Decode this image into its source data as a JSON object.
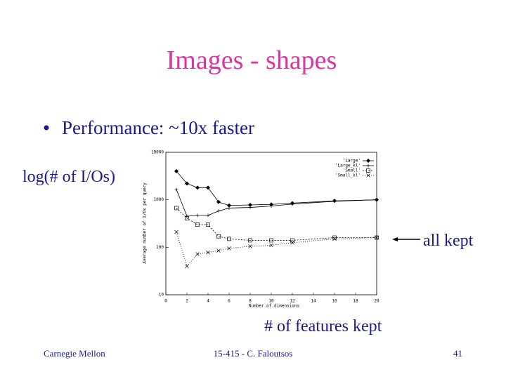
{
  "slide": {
    "title": "Images - shapes",
    "bullet_text": "Performance: ~10x faster",
    "y_note": "log(# of I/Os)",
    "arrow_note": "all kept",
    "x_note": "# of features kept",
    "footer_left": "Carnegie Mellon",
    "footer_center": "15-415 - C. Faloutsos",
    "footer_right": "41"
  },
  "chart_data": {
    "type": "line",
    "x_label": "Number of dimensions",
    "y_label": "Average number of I/Os per query",
    "xlim": [
      0,
      20
    ],
    "xticks": [
      0,
      2,
      4,
      6,
      8,
      10,
      12,
      14,
      16,
      18,
      20
    ],
    "ylim": [
      10,
      10000
    ],
    "yticks": [
      10,
      100,
      1000,
      10000
    ],
    "log_y": true,
    "legend": "top-right",
    "x": [
      1,
      2,
      3,
      4,
      5,
      6,
      8,
      10,
      12,
      16,
      20
    ],
    "series": [
      {
        "name": "'Large'",
        "color": "#000000",
        "marker": "diamond",
        "values": [
          4000,
          2200,
          1800,
          1800,
          900,
          760,
          780,
          800,
          850,
          950,
          1000
        ]
      },
      {
        "name": "'Large_kl'",
        "color": "#000000",
        "marker": "plus",
        "values": [
          1650,
          450,
          470,
          470,
          580,
          670,
          690,
          740,
          810,
          930,
          1000
        ]
      },
      {
        "name": "'Small'",
        "color": "#000000",
        "marker": "square",
        "values": [
          670,
          410,
          300,
          300,
          170,
          150,
          140,
          140,
          140,
          160,
          160
        ]
      },
      {
        "name": "'Small_kl'",
        "color": "#000000",
        "marker": "x",
        "values": [
          210,
          40,
          72,
          78,
          85,
          95,
          105,
          110,
          125,
          150,
          160
        ]
      }
    ]
  }
}
